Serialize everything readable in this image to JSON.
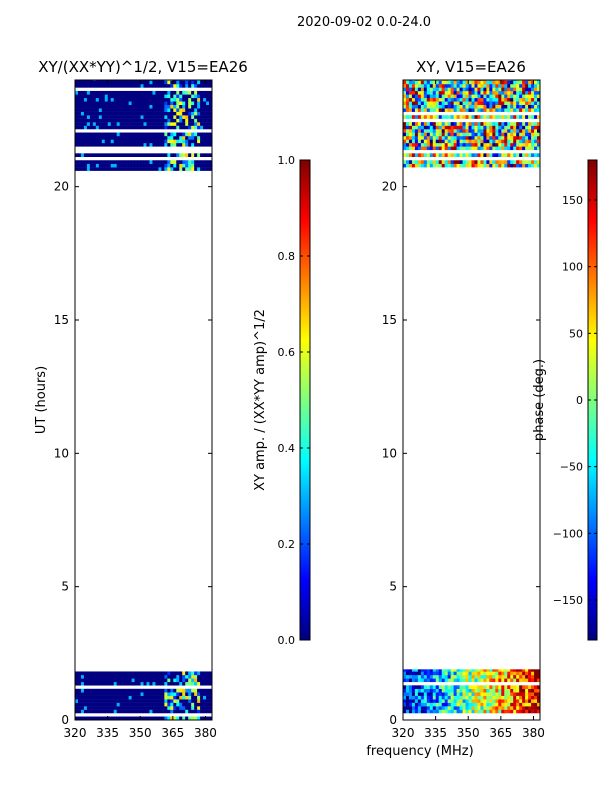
{
  "suptitle": "2020-09-02 0.0-24.0",
  "chart_data": [
    {
      "type": "heatmap",
      "title": "XY/(XX*YY)^1/2, V15=EA26",
      "xlabel": "",
      "ylabel": "UT (hours)",
      "xlim": [
        320,
        383
      ],
      "ylim": [
        0,
        24
      ],
      "xticks": [
        320,
        335,
        350,
        365,
        380
      ],
      "yticks": [
        0,
        5,
        10,
        15,
        20
      ],
      "data_bands_hours": [
        [
          0.0,
          1.9
        ],
        [
          20.6,
          24.0
        ]
      ],
      "colorbar": {
        "label": "XY amp. / (XX*YY amp)^1/2",
        "range": [
          0.0,
          1.0
        ],
        "ticks": [
          "0.0",
          "0.2",
          "0.4",
          "0.6",
          "0.8",
          "1.0"
        ],
        "colormap": "jet"
      }
    },
    {
      "type": "heatmap",
      "title": "XY, V15=EA26",
      "xlabel": "frequency (MHz)",
      "ylabel": "",
      "xlim": [
        320,
        383
      ],
      "ylim": [
        0,
        24
      ],
      "xticks": [
        320,
        335,
        350,
        365,
        380
      ],
      "yticks": [
        0,
        5,
        10,
        15,
        20
      ],
      "data_bands_hours": [
        [
          0.0,
          1.9
        ],
        [
          20.6,
          24.0
        ]
      ],
      "colorbar": {
        "label": "phase (deg.)",
        "range": [
          -180,
          180
        ],
        "ticks": [
          "−150",
          "−100",
          "−50",
          "0",
          "50",
          "100",
          "150"
        ],
        "colormap": "jet"
      }
    }
  ],
  "colors": {
    "jet": [
      "#00007f",
      "#0000ff",
      "#007fff",
      "#00ffff",
      "#7fff7f",
      "#ffff00",
      "#ff7f00",
      "#ff0000",
      "#7f0000"
    ],
    "background": "#ffffff",
    "axes": "#000000"
  }
}
